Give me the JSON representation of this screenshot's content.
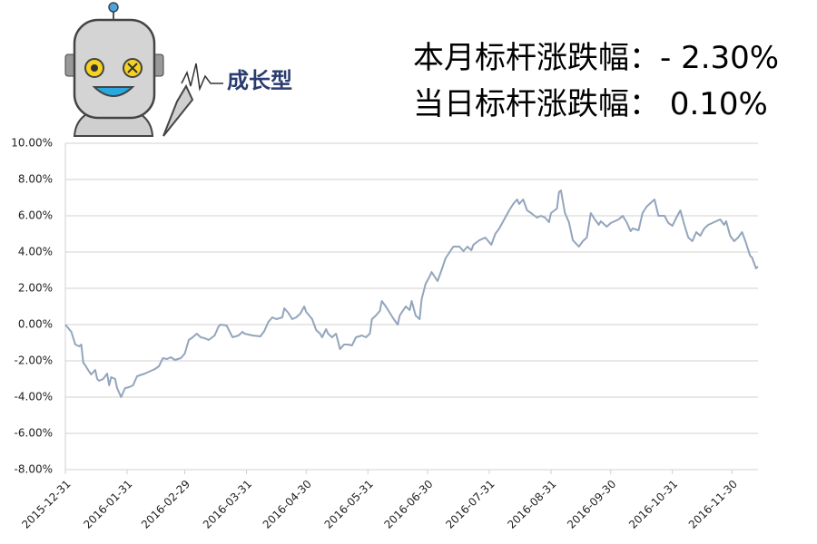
{
  "header": {
    "lines": [
      "本月标杆涨跌幅：- 2.30%",
      "当日标杆涨跌幅：  0.10%"
    ],
    "logo_text": "成长型"
  },
  "chart_data": {
    "type": "line",
    "x": [
      "2015-12-31",
      "2016-01-03",
      "2016-01-05",
      "2016-01-07",
      "2016-01-08",
      "2016-01-09",
      "2016-01-10",
      "2016-01-12",
      "2016-01-13",
      "2016-01-15",
      "2016-01-16",
      "2016-01-17",
      "2016-01-19",
      "2016-01-21",
      "2016-01-22",
      "2016-01-23",
      "2016-01-25",
      "2016-01-26",
      "2016-01-28",
      "2016-01-30",
      "2016-02-01",
      "2016-02-03",
      "2016-02-05",
      "2016-02-09",
      "2016-02-14",
      "2016-02-16",
      "2016-02-18",
      "2016-02-20",
      "2016-02-22",
      "2016-02-24",
      "2016-02-27",
      "2016-02-29",
      "2016-03-02",
      "2016-03-04",
      "2016-03-06",
      "2016-03-08",
      "2016-03-10",
      "2016-03-12",
      "2016-03-15",
      "2016-03-17",
      "2016-03-18",
      "2016-03-21",
      "2016-03-24",
      "2016-03-27",
      "2016-03-29",
      "2016-03-30",
      "2016-04-03",
      "2016-04-07",
      "2016-04-09",
      "2016-04-11",
      "2016-04-13",
      "2016-04-15",
      "2016-04-18",
      "2016-04-19",
      "2016-04-21",
      "2016-04-23",
      "2016-04-25",
      "2016-04-27",
      "2016-04-29",
      "2016-04-30",
      "2016-05-03",
      "2016-05-05",
      "2016-05-07",
      "2016-05-08",
      "2016-05-10",
      "2016-05-11",
      "2016-05-13",
      "2016-05-15",
      "2016-05-17",
      "2016-05-19",
      "2016-05-21",
      "2016-05-23",
      "2016-05-25",
      "2016-05-28",
      "2016-05-30",
      "2016-06-01",
      "2016-06-02",
      "2016-06-04",
      "2016-06-06",
      "2016-06-07",
      "2016-06-09",
      "2016-06-11",
      "2016-06-13",
      "2016-06-15",
      "2016-06-16",
      "2016-06-19",
      "2016-06-21",
      "2016-06-22",
      "2016-06-24",
      "2016-06-26",
      "2016-06-27",
      "2016-06-29",
      "2016-07-01",
      "2016-07-02",
      "2016-07-05",
      "2016-07-07",
      "2016-07-09",
      "2016-07-12",
      "2016-07-13",
      "2016-07-16",
      "2016-07-18",
      "2016-07-20",
      "2016-07-22",
      "2016-07-23",
      "2016-07-26",
      "2016-07-29",
      "2016-08-01",
      "2016-08-03",
      "2016-08-05",
      "2016-08-08",
      "2016-08-10",
      "2016-08-12",
      "2016-08-14",
      "2016-08-15",
      "2016-08-17",
      "2016-08-19",
      "2016-08-21",
      "2016-08-24",
      "2016-08-26",
      "2016-08-28",
      "2016-08-30",
      "2016-08-31",
      "2016-09-03",
      "2016-09-04",
      "2016-09-05",
      "2016-09-07",
      "2016-09-09",
      "2016-09-11",
      "2016-09-14",
      "2016-09-16",
      "2016-09-18",
      "2016-09-20",
      "2016-09-22",
      "2016-09-24",
      "2016-09-25",
      "2016-09-28",
      "2016-09-30",
      "2016-10-04",
      "2016-10-06",
      "2016-10-08",
      "2016-10-10",
      "2016-10-11",
      "2016-10-14",
      "2016-10-16",
      "2016-10-18",
      "2016-10-21",
      "2016-10-22",
      "2016-10-24",
      "2016-10-27",
      "2016-10-29",
      "2016-10-31",
      "2016-11-02",
      "2016-11-04",
      "2016-11-06",
      "2016-11-08",
      "2016-11-10",
      "2016-11-12",
      "2016-11-14",
      "2016-11-16",
      "2016-11-18",
      "2016-11-21",
      "2016-11-24",
      "2016-11-26",
      "2016-11-27",
      "2016-11-29",
      "2016-12-01",
      "2016-12-03",
      "2016-12-05",
      "2016-12-07",
      "2016-12-09",
      "2016-12-10",
      "2016-12-12",
      "2016-12-13"
    ],
    "series": [
      {
        "color": "#93a5bd",
        "values": [
          0,
          -0.4,
          -1.1,
          -1.2,
          -1.1,
          -2.1,
          -2.25,
          -2.6,
          -2.75,
          -2.5,
          -3.0,
          -3.1,
          -3.0,
          -2.7,
          -3.35,
          -2.9,
          -3.0,
          -3.5,
          -4.0,
          -3.5,
          -3.45,
          -3.35,
          -2.85,
          -2.7,
          -2.45,
          -2.3,
          -1.85,
          -1.9,
          -1.8,
          -1.95,
          -1.85,
          -1.6,
          -0.85,
          -0.7,
          -0.5,
          -0.7,
          -0.75,
          -0.85,
          -0.6,
          -0.1,
          0,
          -0.05,
          -0.7,
          -0.6,
          -0.4,
          -0.5,
          -0.6,
          -0.65,
          -0.35,
          0.15,
          0.4,
          0.3,
          0.4,
          0.9,
          0.65,
          0.3,
          0.4,
          0.6,
          1.0,
          0.7,
          0.3,
          -0.3,
          -0.5,
          -0.7,
          -0.25,
          -0.5,
          -0.7,
          -0.5,
          -1.35,
          -1.1,
          -1.1,
          -1.15,
          -0.7,
          -0.6,
          -0.7,
          -0.5,
          0.3,
          0.5,
          0.75,
          1.3,
          1.0,
          0.65,
          0.3,
          0,
          0.5,
          1.0,
          0.8,
          1.3,
          0.5,
          0.3,
          1.4,
          2.25,
          2.65,
          2.9,
          2.4,
          3.0,
          3.65,
          4.15,
          4.3,
          4.3,
          4.05,
          4.3,
          4.1,
          4.4,
          4.65,
          4.8,
          4.4,
          5.0,
          5.3,
          5.9,
          6.3,
          6.65,
          6.9,
          6.65,
          6.9,
          6.3,
          6.15,
          5.9,
          6.0,
          5.9,
          5.65,
          6.15,
          6.4,
          7.3,
          7.4,
          6.15,
          5.65,
          4.65,
          4.3,
          4.6,
          4.8,
          6.15,
          5.8,
          5.5,
          5.7,
          5.4,
          5.6,
          5.8,
          6.0,
          5.65,
          5.15,
          5.3,
          5.2,
          6.15,
          6.5,
          6.8,
          6.9,
          6.0,
          6.0,
          5.6,
          5.45,
          5.9,
          6.3,
          5.5,
          4.8,
          4.6,
          5.1,
          4.9,
          5.3,
          5.5,
          5.65,
          5.8,
          5.5,
          5.7,
          4.9,
          4.6,
          4.8,
          5.1,
          4.5,
          3.8,
          3.7,
          3.1,
          3.2
        ]
      }
    ],
    "xlim": [
      "2015-12-31",
      "2016-12-13"
    ],
    "xticks": [
      "2015-12-31",
      "2016-01-31",
      "2016-02-29",
      "2016-03-31",
      "2016-04-30",
      "2016-05-31",
      "2016-06-30",
      "2016-07-31",
      "2016-08-31",
      "2016-09-30",
      "2016-10-31",
      "2016-11-30"
    ],
    "ylim": [
      -8,
      10
    ],
    "yticks": [
      {
        "value": -8,
        "label": "-8.00%"
      },
      {
        "value": -6,
        "label": "-6.00%"
      },
      {
        "value": -4,
        "label": "-4.00%"
      },
      {
        "value": -2,
        "label": "-2.00%"
      },
      {
        "value": 0,
        "label": "0.00%"
      },
      {
        "value": 2,
        "label": "2.00%"
      },
      {
        "value": 4,
        "label": "4.00%"
      },
      {
        "value": 6,
        "label": "6.00%"
      },
      {
        "value": 8,
        "label": "8.00%"
      },
      {
        "value": 10,
        "label": "10.00%"
      }
    ],
    "grid": true
  }
}
